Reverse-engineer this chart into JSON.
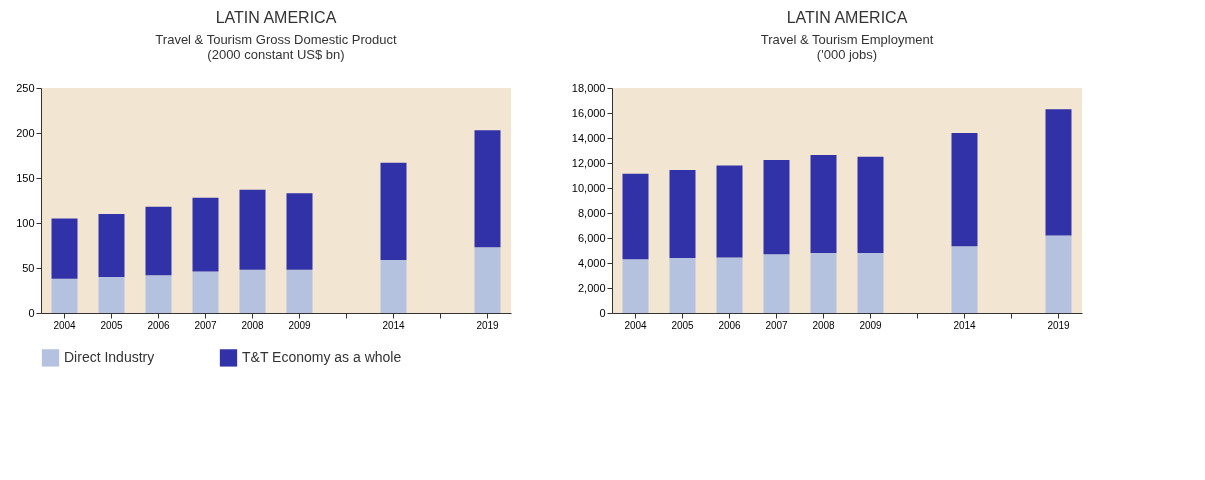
{
  "chart_data": [
    {
      "type": "bar",
      "title": "LATIN AMERICA",
      "subtitle": "Travel & Tourism Gross Domestic Product\n(2000 constant US$ bn)",
      "stacked": true,
      "categories": [
        "2004",
        "2005",
        "2006",
        "2007",
        "2008",
        "2009",
        null,
        "2014",
        null,
        "2019"
      ],
      "series": [
        {
          "name": "Direct  Industry",
          "color": "#b4c2e0",
          "values": [
            38,
            40,
            42,
            46,
            48,
            48,
            null,
            59,
            null,
            73
          ]
        },
        {
          "name": "T&T Economy as a whole",
          "color": "#3232a8",
          "values": [
            67,
            70,
            76,
            82,
            89,
            85,
            null,
            108,
            null,
            130
          ]
        }
      ],
      "ylim": [
        0,
        250
      ],
      "yticks": [
        0,
        50,
        100,
        150,
        200,
        250
      ],
      "grid": false,
      "legend": "bottom"
    },
    {
      "type": "bar",
      "title": "LATIN AMERICA",
      "subtitle": "Travel & Tourism Employment\n('000 jobs)",
      "stacked": true,
      "categories": [
        "2004",
        "2005",
        "2006",
        "2007",
        "2008",
        "2009",
        null,
        "2014",
        null,
        "2019"
      ],
      "series": [
        {
          "name": "Direct  Industry",
          "color": "#b4c2e0",
          "values": [
            4300,
            4400,
            4450,
            4700,
            4800,
            4800,
            null,
            5350,
            null,
            6200
          ]
        },
        {
          "name": "T&T Economy as a whole",
          "color": "#3232a8",
          "values": [
            6850,
            7050,
            7350,
            7550,
            7850,
            7700,
            null,
            9050,
            null,
            10100
          ]
        }
      ],
      "ylim": [
        0,
        18000
      ],
      "yticks": [
        0,
        {
          "value": 2000,
          "label": "2,000"
        },
        {
          "value": 4000,
          "label": "4,000"
        },
        {
          "value": 6000,
          "label": "6,000"
        },
        {
          "value": 8000,
          "label": "8,000"
        },
        {
          "value": 10000,
          "label": "10,000"
        },
        {
          "value": 12000,
          "label": "12,000"
        },
        {
          "value": 14000,
          "label": "14,000"
        },
        {
          "value": 16000,
          "label": "16,000"
        },
        {
          "value": 18000,
          "label": "18,000"
        }
      ],
      "grid": false,
      "legend": "bottom"
    }
  ]
}
